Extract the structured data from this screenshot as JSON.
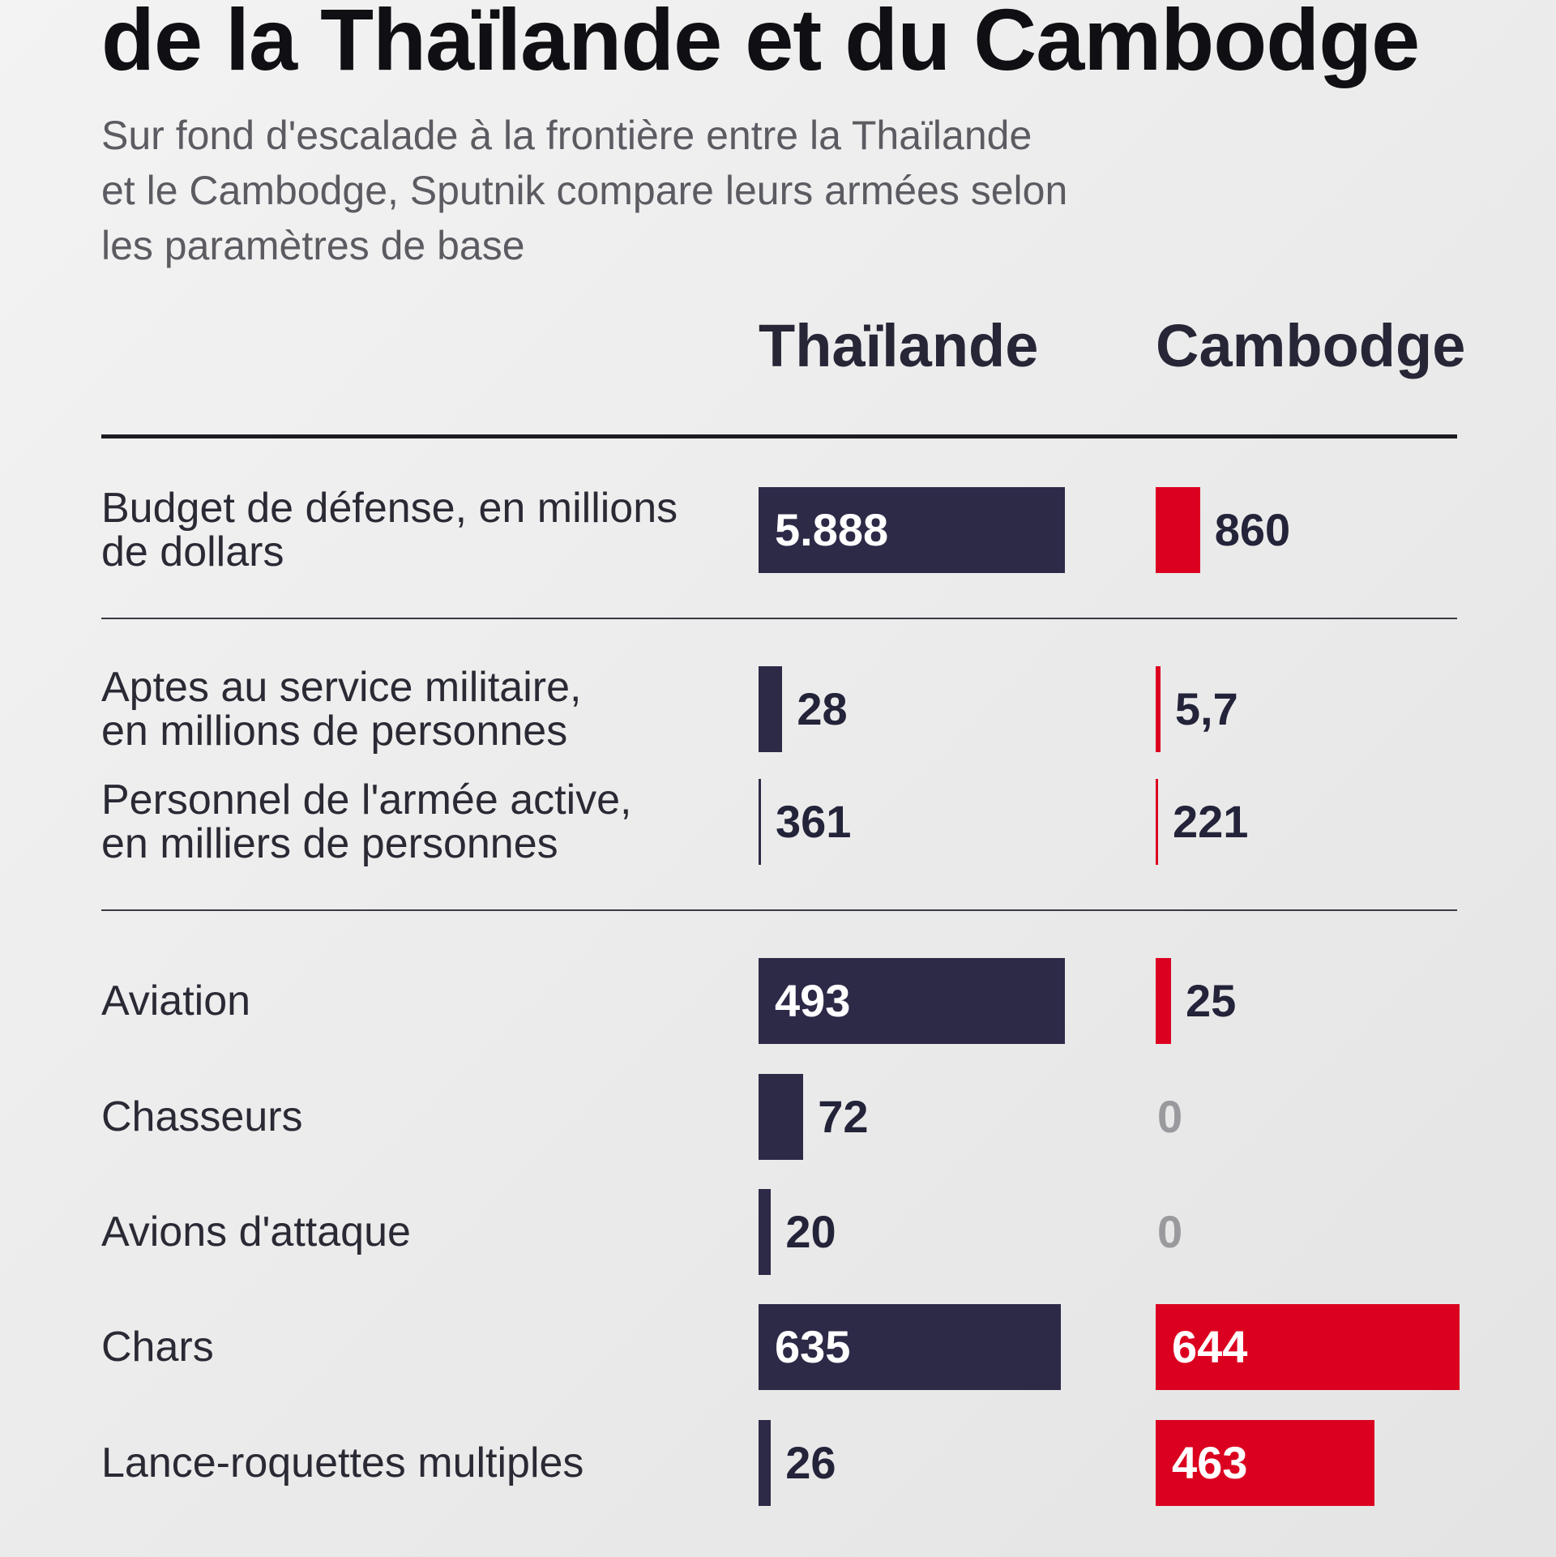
{
  "header": {
    "title": "de la Thaïlande et du Cambodge",
    "subtitle_lines": [
      "Sur fond d'escalade à la frontière entre la Thaïlande",
      "et le Cambodge, Sputnik compare leurs armées selon",
      "les paramètres de base"
    ]
  },
  "columns": {
    "thailand": "Thaïlande",
    "cambodia": "Cambodge"
  },
  "colors": {
    "thailand": "#2d2a48",
    "cambodia": "#dc0020",
    "zero": "#9a9a9e"
  },
  "chart_data": {
    "type": "bar",
    "orientation": "horizontal",
    "series": [
      {
        "name": "Thaïlande",
        "values": [
          5888,
          28,
          361,
          493,
          72,
          20,
          635,
          26
        ]
      },
      {
        "name": "Cambodge",
        "values": [
          860,
          5.7,
          221,
          25,
          0,
          0,
          644,
          463
        ]
      }
    ],
    "categories": [
      "Budget de défense, en millions de dollars",
      "Aptes au service militaire, en millions de personnes",
      "Personnel de l'armée active, en milliers de personnes",
      "Aviation",
      "Chasseurs",
      "Avions d'attaque",
      "Chars",
      "Lance-roquettes multiples"
    ],
    "rows": [
      {
        "label_lines": [
          "Budget de défense, en millions",
          "de dollars"
        ],
        "th": {
          "value": 5888,
          "text": "5.888"
        },
        "kh": {
          "value": 860,
          "text": "860"
        }
      },
      {
        "label_lines": [
          "Aptes au service militaire,",
          "en millions de personnes"
        ],
        "th": {
          "value": 28,
          "text": "28"
        },
        "kh": {
          "value": 5.7,
          "text": "5,7"
        }
      },
      {
        "label_lines": [
          "Personnel de l'armée active,",
          "en milliers de personnes"
        ],
        "th": {
          "value": 361,
          "text": "361"
        },
        "kh": {
          "value": 221,
          "text": "221"
        }
      },
      {
        "label_lines": [
          "Aviation"
        ],
        "th": {
          "value": 493,
          "text": "493"
        },
        "kh": {
          "value": 25,
          "text": "25"
        }
      },
      {
        "label_lines": [
          "Chasseurs"
        ],
        "th": {
          "value": 72,
          "text": "72"
        },
        "kh": {
          "value": 0,
          "text": "0"
        }
      },
      {
        "label_lines": [
          "Avions d'attaque"
        ],
        "th": {
          "value": 20,
          "text": "20"
        },
        "kh": {
          "value": 0,
          "text": "0"
        }
      },
      {
        "label_lines": [
          "Chars"
        ],
        "th": {
          "value": 635,
          "text": "635"
        },
        "kh": {
          "value": 644,
          "text": "644"
        }
      },
      {
        "label_lines": [
          "Lance-roquettes multiples"
        ],
        "th": {
          "value": 26,
          "text": "26"
        },
        "kh": {
          "value": 463,
          "text": "463"
        }
      }
    ],
    "title": "de la Thaïlande et du Cambodge",
    "legend": [
      "Thaïlande",
      "Cambodge"
    ]
  }
}
